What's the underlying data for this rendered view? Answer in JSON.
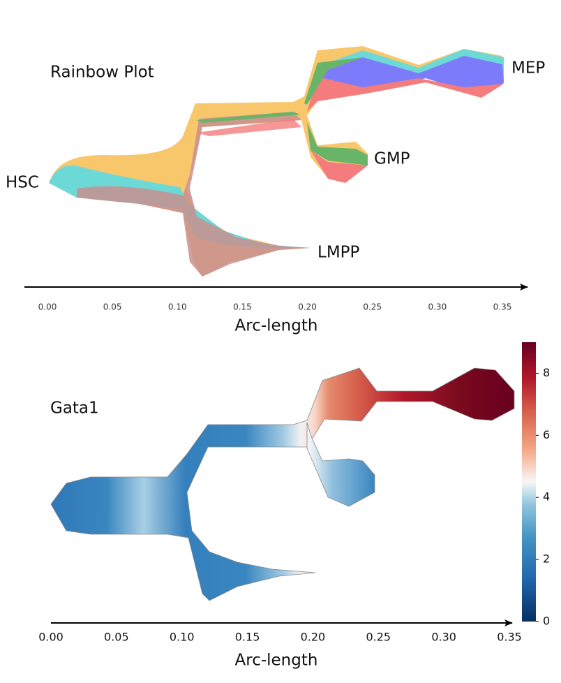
{
  "chart_data": [
    {
      "type": "stream",
      "title": "Rainbow Plot",
      "branch_labels": [
        "HSC",
        "GMP",
        "MEP",
        "LMPP"
      ],
      "xlabel": "Arc-length",
      "xlim": [
        0,
        0.35
      ],
      "xticks": [
        {
          "value": 0,
          "label": "0.00"
        },
        {
          "value": 0.05,
          "label": "0.05"
        },
        {
          "value": 0.1,
          "label": "0.10"
        },
        {
          "value": 0.15,
          "label": "0.15"
        },
        {
          "value": 0.2,
          "label": "0.20"
        },
        {
          "value": 0.25,
          "label": "0.25"
        },
        {
          "value": 0.3,
          "label": "0.30"
        },
        {
          "value": 0.35,
          "label": "0.35"
        }
      ]
    },
    {
      "type": "stream",
      "title": "Gata1",
      "xlabel": "Arc-length",
      "xlim": [
        0,
        0.35
      ],
      "xticks": [
        {
          "value": 0,
          "label": "0.00"
        },
        {
          "value": 0.05,
          "label": "0.05"
        },
        {
          "value": 0.1,
          "label": "0.10"
        },
        {
          "value": 0.15,
          "label": "0.15"
        },
        {
          "value": 0.2,
          "label": "0.20"
        },
        {
          "value": 0.25,
          "label": "0.25"
        },
        {
          "value": 0.3,
          "label": "0.30"
        },
        {
          "value": 0.35,
          "label": "0.35"
        }
      ],
      "colorbar_lim": [
        0,
        9
      ],
      "colorbar_ticks": [
        0,
        2,
        4,
        6,
        8
      ]
    }
  ]
}
